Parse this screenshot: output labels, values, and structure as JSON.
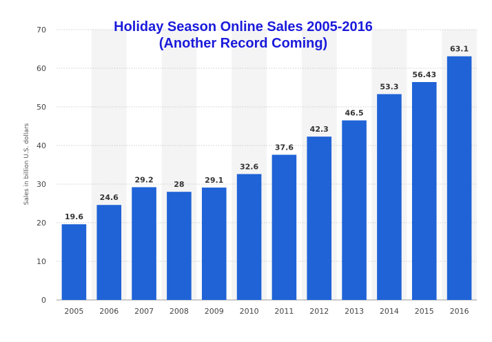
{
  "chart_data": {
    "type": "bar",
    "title": "Holiday Season Online Sales 2005-2016",
    "subtitle": "(Another Record Coming)",
    "xlabel": "",
    "ylabel": "Sales in billion U.S. dollars",
    "categories": [
      "2005",
      "2006",
      "2007",
      "2008",
      "2009",
      "2010",
      "2011",
      "2012",
      "2013",
      "2014",
      "2015",
      "2016"
    ],
    "values": [
      19.6,
      24.6,
      29.2,
      28,
      29.1,
      32.6,
      37.6,
      42.3,
      46.5,
      53.3,
      56.43,
      63.1
    ],
    "value_labels": [
      "19.6",
      "24.6",
      "29.2",
      "28",
      "29.1",
      "32.6",
      "37.6",
      "42.3",
      "46.5",
      "53.3",
      "56.43",
      "63.1"
    ],
    "ylim": [
      0,
      70
    ],
    "yticks": [
      "0",
      "10",
      "20",
      "30",
      "40",
      "50",
      "60",
      "70"
    ],
    "grid": true,
    "colors": {
      "bar": "#1f63d6",
      "title": "#1a1adb",
      "grid": "#cccccc",
      "band": "#f4f4f4"
    }
  }
}
